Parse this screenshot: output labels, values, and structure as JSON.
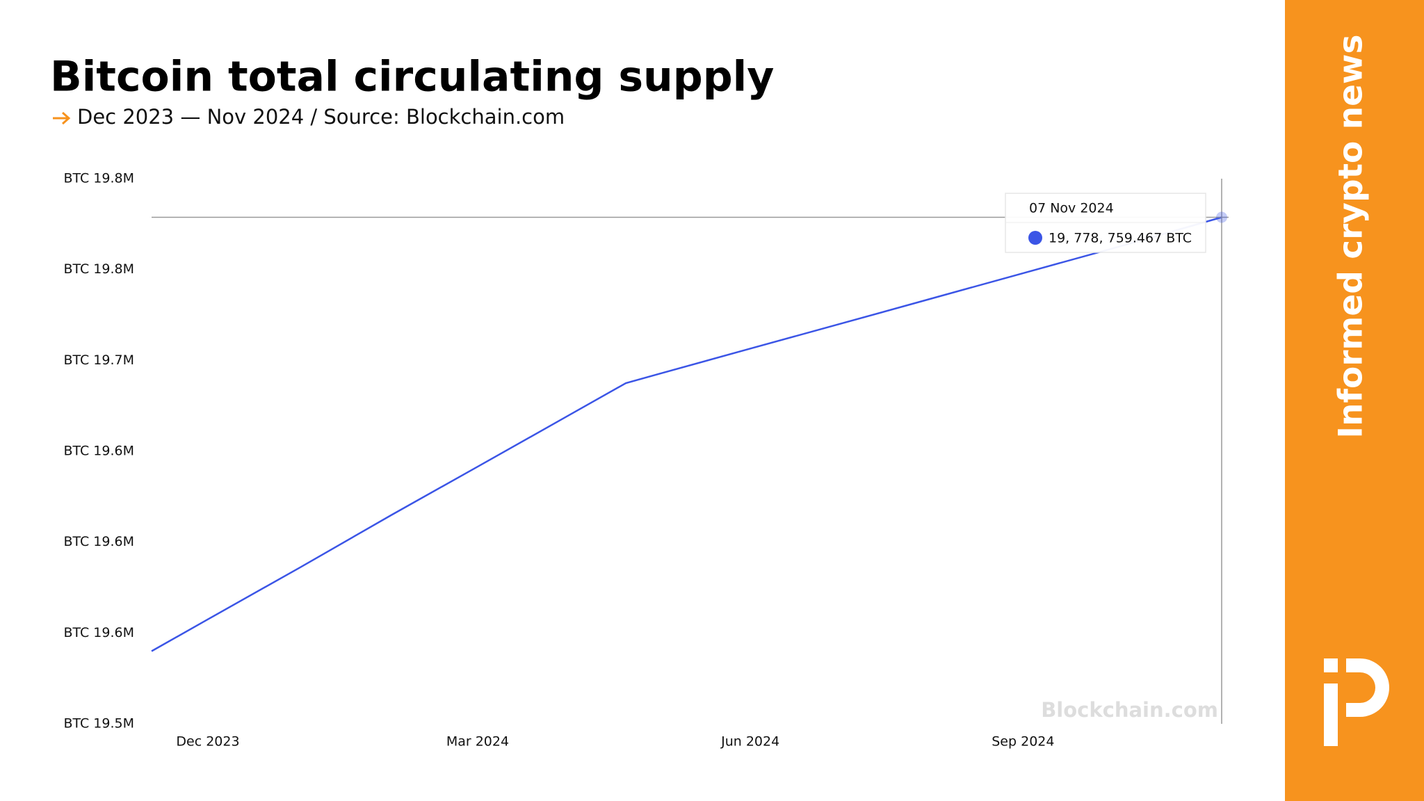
{
  "chart_data": {
    "type": "line",
    "title": "Bitcoin total circulating supply",
    "subtitle": "Dec 2023 — Nov 2024 / Source: Blockchain.com",
    "color": "#3b55e6",
    "x": [
      "2023-11-12",
      "2023-12-01",
      "2024-01-01",
      "2024-02-01",
      "2024-03-01",
      "2024-04-01",
      "2024-04-20",
      "2024-05-01",
      "2024-06-01",
      "2024-07-01",
      "2024-08-01",
      "2024-09-01",
      "2024-10-01",
      "2024-11-07"
    ],
    "values": [
      19540000,
      19557500,
      19586000,
      19615000,
      19641500,
      19670000,
      19687500,
      19692500,
      19706500,
      19720000,
      19734000,
      19748000,
      19761500,
      19778759.467
    ],
    "xlim": [
      "2023-11-12",
      "2024-11-07"
    ],
    "xticks": [
      {
        "value": "2023-12-01",
        "label": "Dec 2023"
      },
      {
        "value": "2024-03-01",
        "label": "Mar 2024"
      },
      {
        "value": "2024-06-01",
        "label": "Jun 2024"
      },
      {
        "value": "2024-09-01",
        "label": "Sep 2024"
      }
    ],
    "ylim": [
      19500000,
      19800000
    ],
    "yticks": [
      {
        "value": 19500000,
        "label": "BTC 19.5M"
      },
      {
        "value": 19550000,
        "label": "BTC 19.6M"
      },
      {
        "value": 19600000,
        "label": "BTC 19.6M"
      },
      {
        "value": 19650000,
        "label": "BTC 19.6M"
      },
      {
        "value": 19700000,
        "label": "BTC 19.7M"
      },
      {
        "value": 19750000,
        "label": "BTC 19.8M"
      },
      {
        "value": 19800000,
        "label": "BTC 19.8M"
      }
    ],
    "tooltip": {
      "date": "07 Nov 2024",
      "value": 19778759.467,
      "label": "19, 778, 759.467 BTC"
    },
    "watermark": "Blockchain.com"
  },
  "sidebar": {
    "tagline": "Informed crypto news"
  }
}
